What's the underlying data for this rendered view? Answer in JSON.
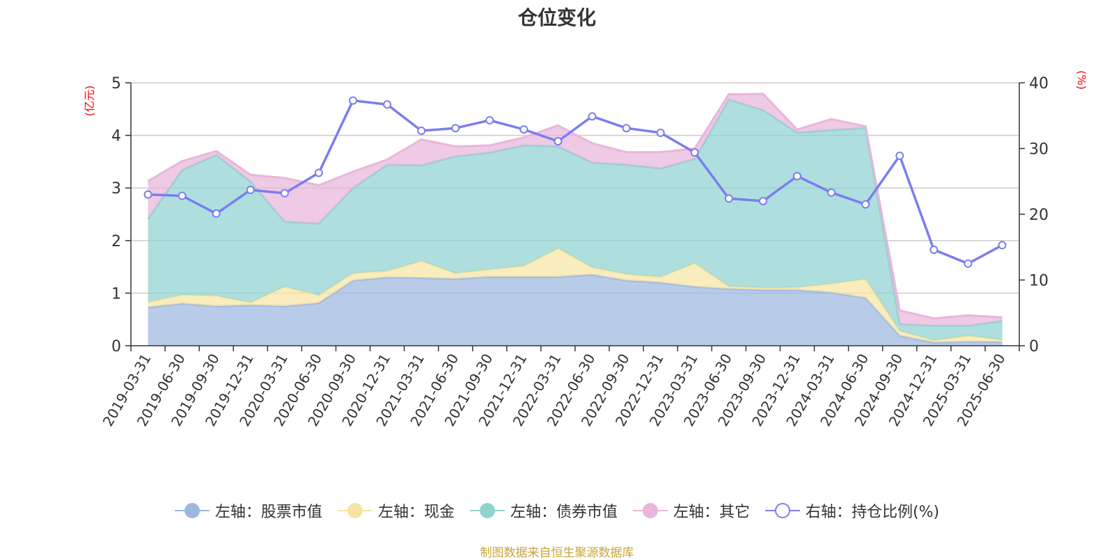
{
  "title": "仓位变化",
  "source_note": "制图数据来自恒生聚源数据库",
  "chart_data": {
    "type": "area",
    "left_axis_label": "(亿元)",
    "right_axis_label": "(%)",
    "ylim_left": [
      0,
      5
    ],
    "ylim_right": [
      0,
      40
    ],
    "left_ticks": [
      0,
      1,
      2,
      3,
      4,
      5
    ],
    "right_ticks": [
      0,
      10,
      20,
      30,
      40
    ],
    "grid": true,
    "legend_position": "bottom",
    "categories": [
      "2019-03-31",
      "2019-06-30",
      "2019-09-30",
      "2019-12-31",
      "2020-03-31",
      "2020-06-30",
      "2020-09-30",
      "2020-12-31",
      "2021-03-31",
      "2021-06-30",
      "2021-09-30",
      "2021-12-31",
      "2022-03-31",
      "2022-06-30",
      "2022-09-30",
      "2022-12-31",
      "2023-03-31",
      "2023-06-30",
      "2023-09-30",
      "2023-12-31",
      "2024-03-31",
      "2024-06-30",
      "2024-09-30",
      "2024-12-31",
      "2025-03-31",
      "2025-06-30"
    ],
    "series": [
      {
        "name": "左轴：股票市值",
        "axis": "left",
        "kind": "area",
        "color": "#9db8e0",
        "values": [
          0.73,
          0.8,
          0.75,
          0.77,
          0.75,
          0.81,
          1.24,
          1.3,
          1.29,
          1.27,
          1.31,
          1.31,
          1.31,
          1.35,
          1.24,
          1.2,
          1.12,
          1.08,
          1.06,
          1.06,
          1.01,
          0.91,
          0.19,
          0.06,
          0.08,
          0.07
        ]
      },
      {
        "name": "左轴：现金",
        "axis": "left",
        "kind": "area",
        "color": "#f7e4a3",
        "values": [
          0.1,
          0.17,
          0.2,
          0.05,
          0.37,
          0.15,
          0.14,
          0.12,
          0.32,
          0.11,
          0.14,
          0.21,
          0.54,
          0.14,
          0.12,
          0.11,
          0.45,
          0.05,
          0.04,
          0.05,
          0.17,
          0.36,
          0.09,
          0.04,
          0.11,
          0.04
        ]
      },
      {
        "name": "左轴：债券市值",
        "axis": "left",
        "kind": "area",
        "color": "#8fd3d1",
        "values": [
          1.58,
          2.37,
          2.68,
          2.3,
          1.24,
          1.36,
          1.62,
          2.02,
          1.82,
          2.22,
          2.22,
          2.29,
          1.94,
          1.99,
          2.08,
          2.06,
          1.98,
          3.55,
          3.38,
          2.94,
          2.92,
          2.87,
          0.13,
          0.28,
          0.19,
          0.36
        ]
      },
      {
        "name": "左轴：其它",
        "axis": "left",
        "kind": "area",
        "color": "#e8b6db",
        "values": [
          0.72,
          0.17,
          0.07,
          0.13,
          0.83,
          0.73,
          0.31,
          0.1,
          0.49,
          0.19,
          0.14,
          0.15,
          0.4,
          0.37,
          0.24,
          0.31,
          0.2,
          0.1,
          0.31,
          0.06,
          0.21,
          0.03,
          0.26,
          0.14,
          0.2,
          0.07
        ]
      },
      {
        "name": "右轴：持仓比例(%)",
        "axis": "right",
        "kind": "line",
        "color": "#7b7df0",
        "values": [
          23.0,
          22.8,
          20.1,
          23.7,
          23.2,
          26.3,
          37.3,
          36.7,
          32.7,
          33.1,
          34.3,
          32.9,
          31.1,
          34.9,
          33.1,
          32.4,
          29.4,
          22.4,
          22.0,
          25.8,
          23.3,
          21.5,
          28.9,
          14.6,
          12.5,
          15.3
        ]
      }
    ]
  }
}
